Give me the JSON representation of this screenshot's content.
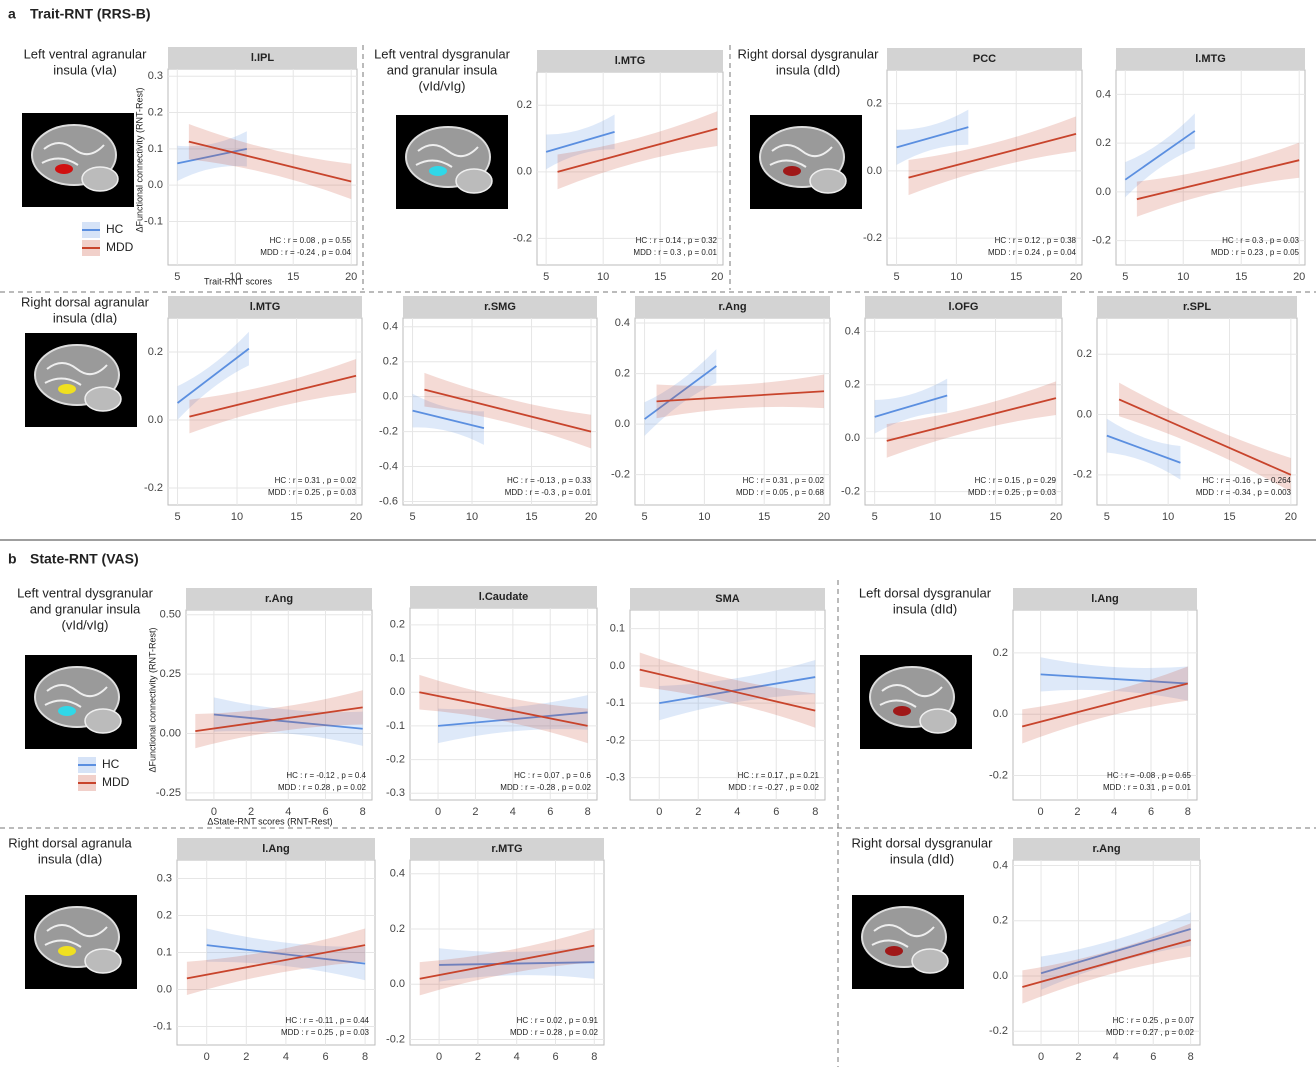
{
  "sections": [
    {
      "label": "a",
      "title": "Trait-RNT (RRS-B)",
      "y_label": "ΔFunctional connectivity (RNT-Rest)",
      "x_label": "Trait-RNT scores",
      "legend": [
        {
          "name": "HC",
          "color": "#5b8fe0"
        },
        {
          "name": "MDD",
          "color": "#c8442c"
        }
      ]
    },
    {
      "label": "b",
      "title": "State-RNT (VAS)",
      "y_label": "ΔFunctional connectivity (RNT-Rest)",
      "x_label": "ΔState-RNT scores (RNT-Rest)",
      "legend": [
        {
          "name": "HC",
          "color": "#5b8fe0"
        },
        {
          "name": "MDD",
          "color": "#c8442c"
        }
      ]
    }
  ],
  "regions": [
    {
      "lines": [
        "Left ventral agranular",
        "insula (vIa)"
      ],
      "color": "#d01010"
    },
    {
      "lines": [
        "Left ventral dysgranular",
        "and granular insula",
        "(vId/vIg)"
      ],
      "color": "#30d8e8"
    },
    {
      "lines": [
        "Right dorsal dysgranular",
        "insula (dId)"
      ],
      "color": "#a01818"
    },
    {
      "lines": [
        "Right dorsal agranular",
        "insula (dIa)"
      ],
      "color": "#f0e020"
    },
    {
      "lines": [
        "Left ventral dysgranular",
        "and granular insula",
        "(vId/vIg)"
      ],
      "color": "#30d8e8"
    },
    {
      "lines": [
        "Left dorsal dysgranular",
        "insula (dId)"
      ],
      "color": "#a01818"
    },
    {
      "lines": [
        "Right dorsal agranula",
        "insula (dIa)"
      ],
      "color": "#f0e020"
    },
    {
      "lines": [
        "Right dorsal dysgranular",
        "insula (dId)"
      ],
      "color": "#a01818"
    }
  ],
  "chart_data": [
    {
      "type": "regression",
      "title": "l.IPL",
      "xlim": [
        4.2,
        20.5
      ],
      "xticks": [
        5,
        10,
        15,
        20
      ],
      "ylim": [
        -0.22,
        0.32
      ],
      "yticks": [
        -0.1,
        {
          "value": 0,
          "label": "0.0"
        },
        0.1,
        0.2,
        0.3
      ],
      "series": [
        {
          "color": "#5b8fe0",
          "x": [
            5,
            11
          ],
          "values": [
            0.06,
            0.1
          ]
        },
        {
          "color": "#c8442c",
          "x": [
            6,
            20
          ],
          "values": [
            0.12,
            0.01
          ]
        }
      ],
      "stats": [
        "HC : r = 0.08 , p = 0.55",
        "MDD : r = -0.24 , p = 0.04"
      ]
    },
    {
      "type": "regression",
      "title": "l.MTG",
      "xlim": [
        4.2,
        20.5
      ],
      "xticks": [
        5,
        10,
        15,
        20
      ],
      "ylim": [
        -0.28,
        0.3
      ],
      "yticks": [
        -0.2,
        {
          "value": 0,
          "label": "0.0"
        },
        0.2
      ],
      "series": [
        {
          "color": "#5b8fe0",
          "x": [
            5,
            11
          ],
          "values": [
            0.06,
            0.12
          ]
        },
        {
          "color": "#c8442c",
          "x": [
            6,
            20
          ],
          "values": [
            0.0,
            0.13
          ]
        }
      ],
      "stats": [
        "HC : r = 0.14 , p = 0.32",
        "MDD : r = 0.3 , p = 0.01"
      ]
    },
    {
      "type": "regression",
      "title": "PCC",
      "xlim": [
        4.2,
        20.5
      ],
      "xticks": [
        5,
        10,
        15,
        20
      ],
      "ylim": [
        -0.28,
        0.3
      ],
      "yticks": [
        -0.2,
        {
          "value": 0,
          "label": "0.0"
        },
        0.2
      ],
      "series": [
        {
          "color": "#5b8fe0",
          "x": [
            5,
            11
          ],
          "values": [
            0.07,
            0.13
          ]
        },
        {
          "color": "#c8442c",
          "x": [
            6,
            20
          ],
          "values": [
            -0.02,
            0.11
          ]
        }
      ],
      "stats": [
        "HC : r = 0.12 , p = 0.38",
        "MDD : r = 0.24 , p = 0.04"
      ]
    },
    {
      "type": "regression",
      "title": "l.MTG",
      "xlim": [
        4.2,
        20.5
      ],
      "xticks": [
        5,
        10,
        15,
        20
      ],
      "ylim": [
        -0.3,
        0.5
      ],
      "yticks": [
        -0.2,
        {
          "value": 0,
          "label": "0.0"
        },
        0.2,
        0.4
      ],
      "series": [
        {
          "color": "#5b8fe0",
          "x": [
            5,
            11
          ],
          "values": [
            0.05,
            0.25
          ]
        },
        {
          "color": "#c8442c",
          "x": [
            6,
            20
          ],
          "values": [
            -0.03,
            0.13
          ]
        }
      ],
      "stats": [
        "HC : r = 0.3 , p = 0.03",
        "MDD : r = 0.23 , p = 0.05"
      ]
    },
    {
      "type": "regression",
      "title": "l.MTG",
      "xlim": [
        4.2,
        20.5
      ],
      "xticks": [
        5,
        10,
        15,
        20
      ],
      "ylim": [
        -0.25,
        0.3
      ],
      "yticks": [
        -0.2,
        {
          "value": 0,
          "label": "0.0"
        },
        0.2
      ],
      "series": [
        {
          "color": "#5b8fe0",
          "x": [
            5,
            11
          ],
          "values": [
            0.05,
            0.21
          ]
        },
        {
          "color": "#c8442c",
          "x": [
            6,
            20
          ],
          "values": [
            0.01,
            0.13
          ]
        }
      ],
      "stats": [
        "HC : r = 0.31 , p = 0.02",
        "MDD : r = 0.25 , p = 0.03"
      ]
    },
    {
      "type": "regression",
      "title": "r.SMG",
      "xlim": [
        4.2,
        20.5
      ],
      "xticks": [
        5,
        10,
        15,
        20
      ],
      "ylim": [
        -0.62,
        0.45
      ],
      "yticks": [
        -0.6,
        -0.4,
        -0.2,
        {
          "value": 0,
          "label": "0.0"
        },
        0.2,
        0.4
      ],
      "series": [
        {
          "color": "#5b8fe0",
          "x": [
            5,
            11
          ],
          "values": [
            -0.08,
            -0.18
          ]
        },
        {
          "color": "#c8442c",
          "x": [
            6,
            20
          ],
          "values": [
            0.04,
            -0.2
          ]
        }
      ],
      "stats": [
        "HC : r = -0.13 , p = 0.33",
        "MDD : r = -0.3 , p = 0.01"
      ]
    },
    {
      "type": "regression",
      "title": "r.Ang",
      "xlim": [
        4.2,
        20.5
      ],
      "xticks": [
        5,
        10,
        15,
        20
      ],
      "ylim": [
        -0.32,
        0.42
      ],
      "yticks": [
        -0.2,
        {
          "value": 0,
          "label": "0.0"
        },
        0.2,
        0.4
      ],
      "series": [
        {
          "color": "#5b8fe0",
          "x": [
            5,
            11
          ],
          "values": [
            0.02,
            0.23
          ]
        },
        {
          "color": "#c8442c",
          "x": [
            6,
            20
          ],
          "values": [
            0.09,
            0.13
          ]
        }
      ],
      "stats": [
        "HC : r = 0.31 , p = 0.02",
        "MDD : r = 0.05 , p = 0.68"
      ]
    },
    {
      "type": "regression",
      "title": "l.OFG",
      "xlim": [
        4.2,
        20.5
      ],
      "xticks": [
        5,
        10,
        15,
        20
      ],
      "ylim": [
        -0.25,
        0.45
      ],
      "yticks": [
        -0.2,
        {
          "value": 0,
          "label": "0.0"
        },
        0.2,
        0.4
      ],
      "series": [
        {
          "color": "#5b8fe0",
          "x": [
            5,
            11
          ],
          "values": [
            0.08,
            0.16
          ]
        },
        {
          "color": "#c8442c",
          "x": [
            6,
            20
          ],
          "values": [
            -0.01,
            0.15
          ]
        }
      ],
      "stats": [
        "HC : r = 0.15 , p = 0.29",
        "MDD : r = 0.25 , p = 0.03"
      ]
    },
    {
      "type": "regression",
      "title": "r.SPL",
      "xlim": [
        4.2,
        20.5
      ],
      "xticks": [
        5,
        10,
        15,
        20
      ],
      "ylim": [
        -0.3,
        0.32
      ],
      "yticks": [
        -0.2,
        {
          "value": 0,
          "label": "0.0"
        },
        0.2
      ],
      "series": [
        {
          "color": "#5b8fe0",
          "x": [
            5,
            11
          ],
          "values": [
            -0.07,
            -0.16
          ]
        },
        {
          "color": "#c8442c",
          "x": [
            6,
            20
          ],
          "values": [
            0.05,
            -0.2
          ]
        }
      ],
      "stats": [
        "HC : r = -0.16 , p = 0.264",
        "MDD : r = -0.34 , p = 0.003"
      ]
    },
    {
      "type": "regression",
      "title": "r.Ang",
      "xlim": [
        -1.5,
        8.5
      ],
      "xticks": [
        0,
        2,
        4,
        6,
        8
      ],
      "ylim": [
        -0.28,
        0.52
      ],
      "yticks": [
        -0.25,
        {
          "value": 0,
          "label": "0.00"
        },
        0.25,
        {
          "value": 0.5,
          "label": "0.50"
        }
      ],
      "series": [
        {
          "color": "#5b8fe0",
          "x": [
            0,
            8
          ],
          "values": [
            0.08,
            0.02
          ]
        },
        {
          "color": "#c8442c",
          "x": [
            -1,
            8
          ],
          "values": [
            0.01,
            0.11
          ]
        }
      ],
      "stats": [
        "HC : r = -0.12 , p = 0.4",
        "MDD : r = 0.28 , p = 0.02"
      ]
    },
    {
      "type": "regression",
      "title": "l.Caudate",
      "xlim": [
        -1.5,
        8.5
      ],
      "xticks": [
        0,
        2,
        4,
        6,
        8
      ],
      "ylim": [
        -0.32,
        0.25
      ],
      "yticks": [
        -0.3,
        -0.2,
        -0.1,
        {
          "value": 0,
          "label": "0.0"
        },
        0.1,
        0.2
      ],
      "series": [
        {
          "color": "#5b8fe0",
          "x": [
            0,
            8
          ],
          "values": [
            -0.1,
            -0.06
          ]
        },
        {
          "color": "#c8442c",
          "x": [
            -1,
            8
          ],
          "values": [
            0.0,
            -0.1
          ]
        }
      ],
      "stats": [
        "HC : r = 0.07 , p = 0.6",
        "MDD : r = -0.28 , p = 0.02"
      ]
    },
    {
      "type": "regression",
      "title": "SMA",
      "xlim": [
        -1.5,
        8.5
      ],
      "xticks": [
        0,
        2,
        4,
        6,
        8
      ],
      "ylim": [
        -0.36,
        0.15
      ],
      "yticks": [
        -0.3,
        -0.2,
        -0.1,
        {
          "value": 0,
          "label": "0.0"
        },
        0.1
      ],
      "series": [
        {
          "color": "#5b8fe0",
          "x": [
            0,
            8
          ],
          "values": [
            -0.1,
            -0.03
          ]
        },
        {
          "color": "#c8442c",
          "x": [
            -1,
            8
          ],
          "values": [
            -0.01,
            -0.12
          ]
        }
      ],
      "stats": [
        "HC : r = 0.17 , p = 0.21",
        "MDD : r = -0.27 , p = 0.02"
      ]
    },
    {
      "type": "regression",
      "title": "l.Ang",
      "xlim": [
        -1.5,
        8.5
      ],
      "xticks": [
        0,
        2,
        4,
        6,
        8
      ],
      "ylim": [
        -0.28,
        0.34
      ],
      "yticks": [
        -0.2,
        {
          "value": 0,
          "label": "0.0"
        },
        0.2
      ],
      "series": [
        {
          "color": "#5b8fe0",
          "x": [
            0,
            8
          ],
          "values": [
            0.13,
            0.1
          ]
        },
        {
          "color": "#c8442c",
          "x": [
            -1,
            8
          ],
          "values": [
            -0.04,
            0.1
          ]
        }
      ],
      "stats": [
        "HC : r = -0.08 , p = 0.65",
        "MDD : r = 0.31 , p = 0.01"
      ]
    },
    {
      "type": "regression",
      "title": "l.Ang",
      "xlim": [
        -1.5,
        8.5
      ],
      "xticks": [
        0,
        2,
        4,
        6,
        8
      ],
      "ylim": [
        -0.15,
        0.35
      ],
      "yticks": [
        -0.1,
        {
          "value": 0,
          "label": "0.0"
        },
        0.1,
        0.2,
        0.3
      ],
      "series": [
        {
          "color": "#5b8fe0",
          "x": [
            0,
            8
          ],
          "values": [
            0.12,
            0.07
          ]
        },
        {
          "color": "#c8442c",
          "x": [
            -1,
            8
          ],
          "values": [
            0.03,
            0.12
          ]
        }
      ],
      "stats": [
        "HC : r = -0.11 , p = 0.44",
        "MDD : r = 0.25 , p = 0.03"
      ]
    },
    {
      "type": "regression",
      "title": "r.MTG",
      "xlim": [
        -1.5,
        8.5
      ],
      "xticks": [
        0,
        2,
        4,
        6,
        8
      ],
      "ylim": [
        -0.22,
        0.45
      ],
      "yticks": [
        -0.2,
        {
          "value": 0,
          "label": "0.0"
        },
        0.2,
        0.4
      ],
      "series": [
        {
          "color": "#5b8fe0",
          "x": [
            0,
            8
          ],
          "values": [
            0.07,
            0.08
          ]
        },
        {
          "color": "#c8442c",
          "x": [
            -1,
            8
          ],
          "values": [
            0.02,
            0.14
          ]
        }
      ],
      "stats": [
        "HC : r = 0.02 , p = 0.91",
        "MDD : r = 0.28 , p = 0.02"
      ]
    },
    {
      "type": "regression",
      "title": "r.Ang",
      "xlim": [
        -1.5,
        8.5
      ],
      "xticks": [
        0,
        2,
        4,
        6,
        8
      ],
      "ylim": [
        -0.25,
        0.42
      ],
      "yticks": [
        -0.2,
        {
          "value": 0,
          "label": "0.0"
        },
        0.2,
        0.4
      ],
      "series": [
        {
          "color": "#5b8fe0",
          "x": [
            0,
            8
          ],
          "values": [
            0.01,
            0.17
          ]
        },
        {
          "color": "#c8442c",
          "x": [
            -1,
            8
          ],
          "values": [
            -0.04,
            0.13
          ]
        }
      ],
      "stats": [
        "HC : r = 0.25 , p = 0.07",
        "MDD : r = 0.27 , p = 0.02"
      ]
    }
  ]
}
